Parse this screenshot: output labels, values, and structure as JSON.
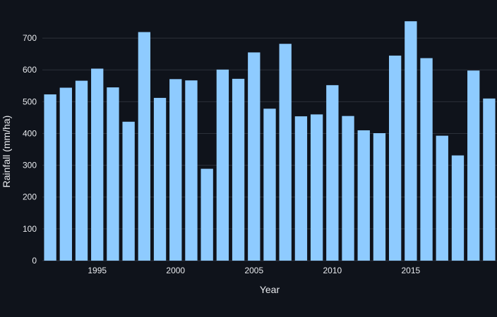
{
  "chart_data": {
    "type": "bar",
    "title": "",
    "xlabel": "Year",
    "ylabel": "Rainfall (mm/ha)",
    "x": [
      1992,
      1993,
      1994,
      1995,
      1996,
      1997,
      1998,
      1999,
      2000,
      2001,
      2002,
      2003,
      2004,
      2005,
      2006,
      2007,
      2008,
      2009,
      2010,
      2011,
      2012,
      2013,
      2014,
      2015,
      2016,
      2017,
      2018,
      2019,
      2020
    ],
    "values": [
      523,
      544,
      566,
      604,
      545,
      437,
      719,
      512,
      571,
      567,
      289,
      601,
      572,
      655,
      478,
      682,
      454,
      460,
      552,
      455,
      410,
      401,
      645,
      753,
      637,
      393,
      331,
      598,
      510
    ],
    "ylim": [
      0,
      780
    ],
    "yticks": [
      0,
      100,
      200,
      300,
      400,
      500,
      600,
      700
    ],
    "xticks": [
      1995,
      2000,
      2005,
      2010,
      2015
    ],
    "grid": true,
    "legend": "none",
    "colors": {
      "background": "#0f131b",
      "bar": "#8ecbff",
      "grid": "#2c313b",
      "text": "#e8eaee"
    }
  }
}
